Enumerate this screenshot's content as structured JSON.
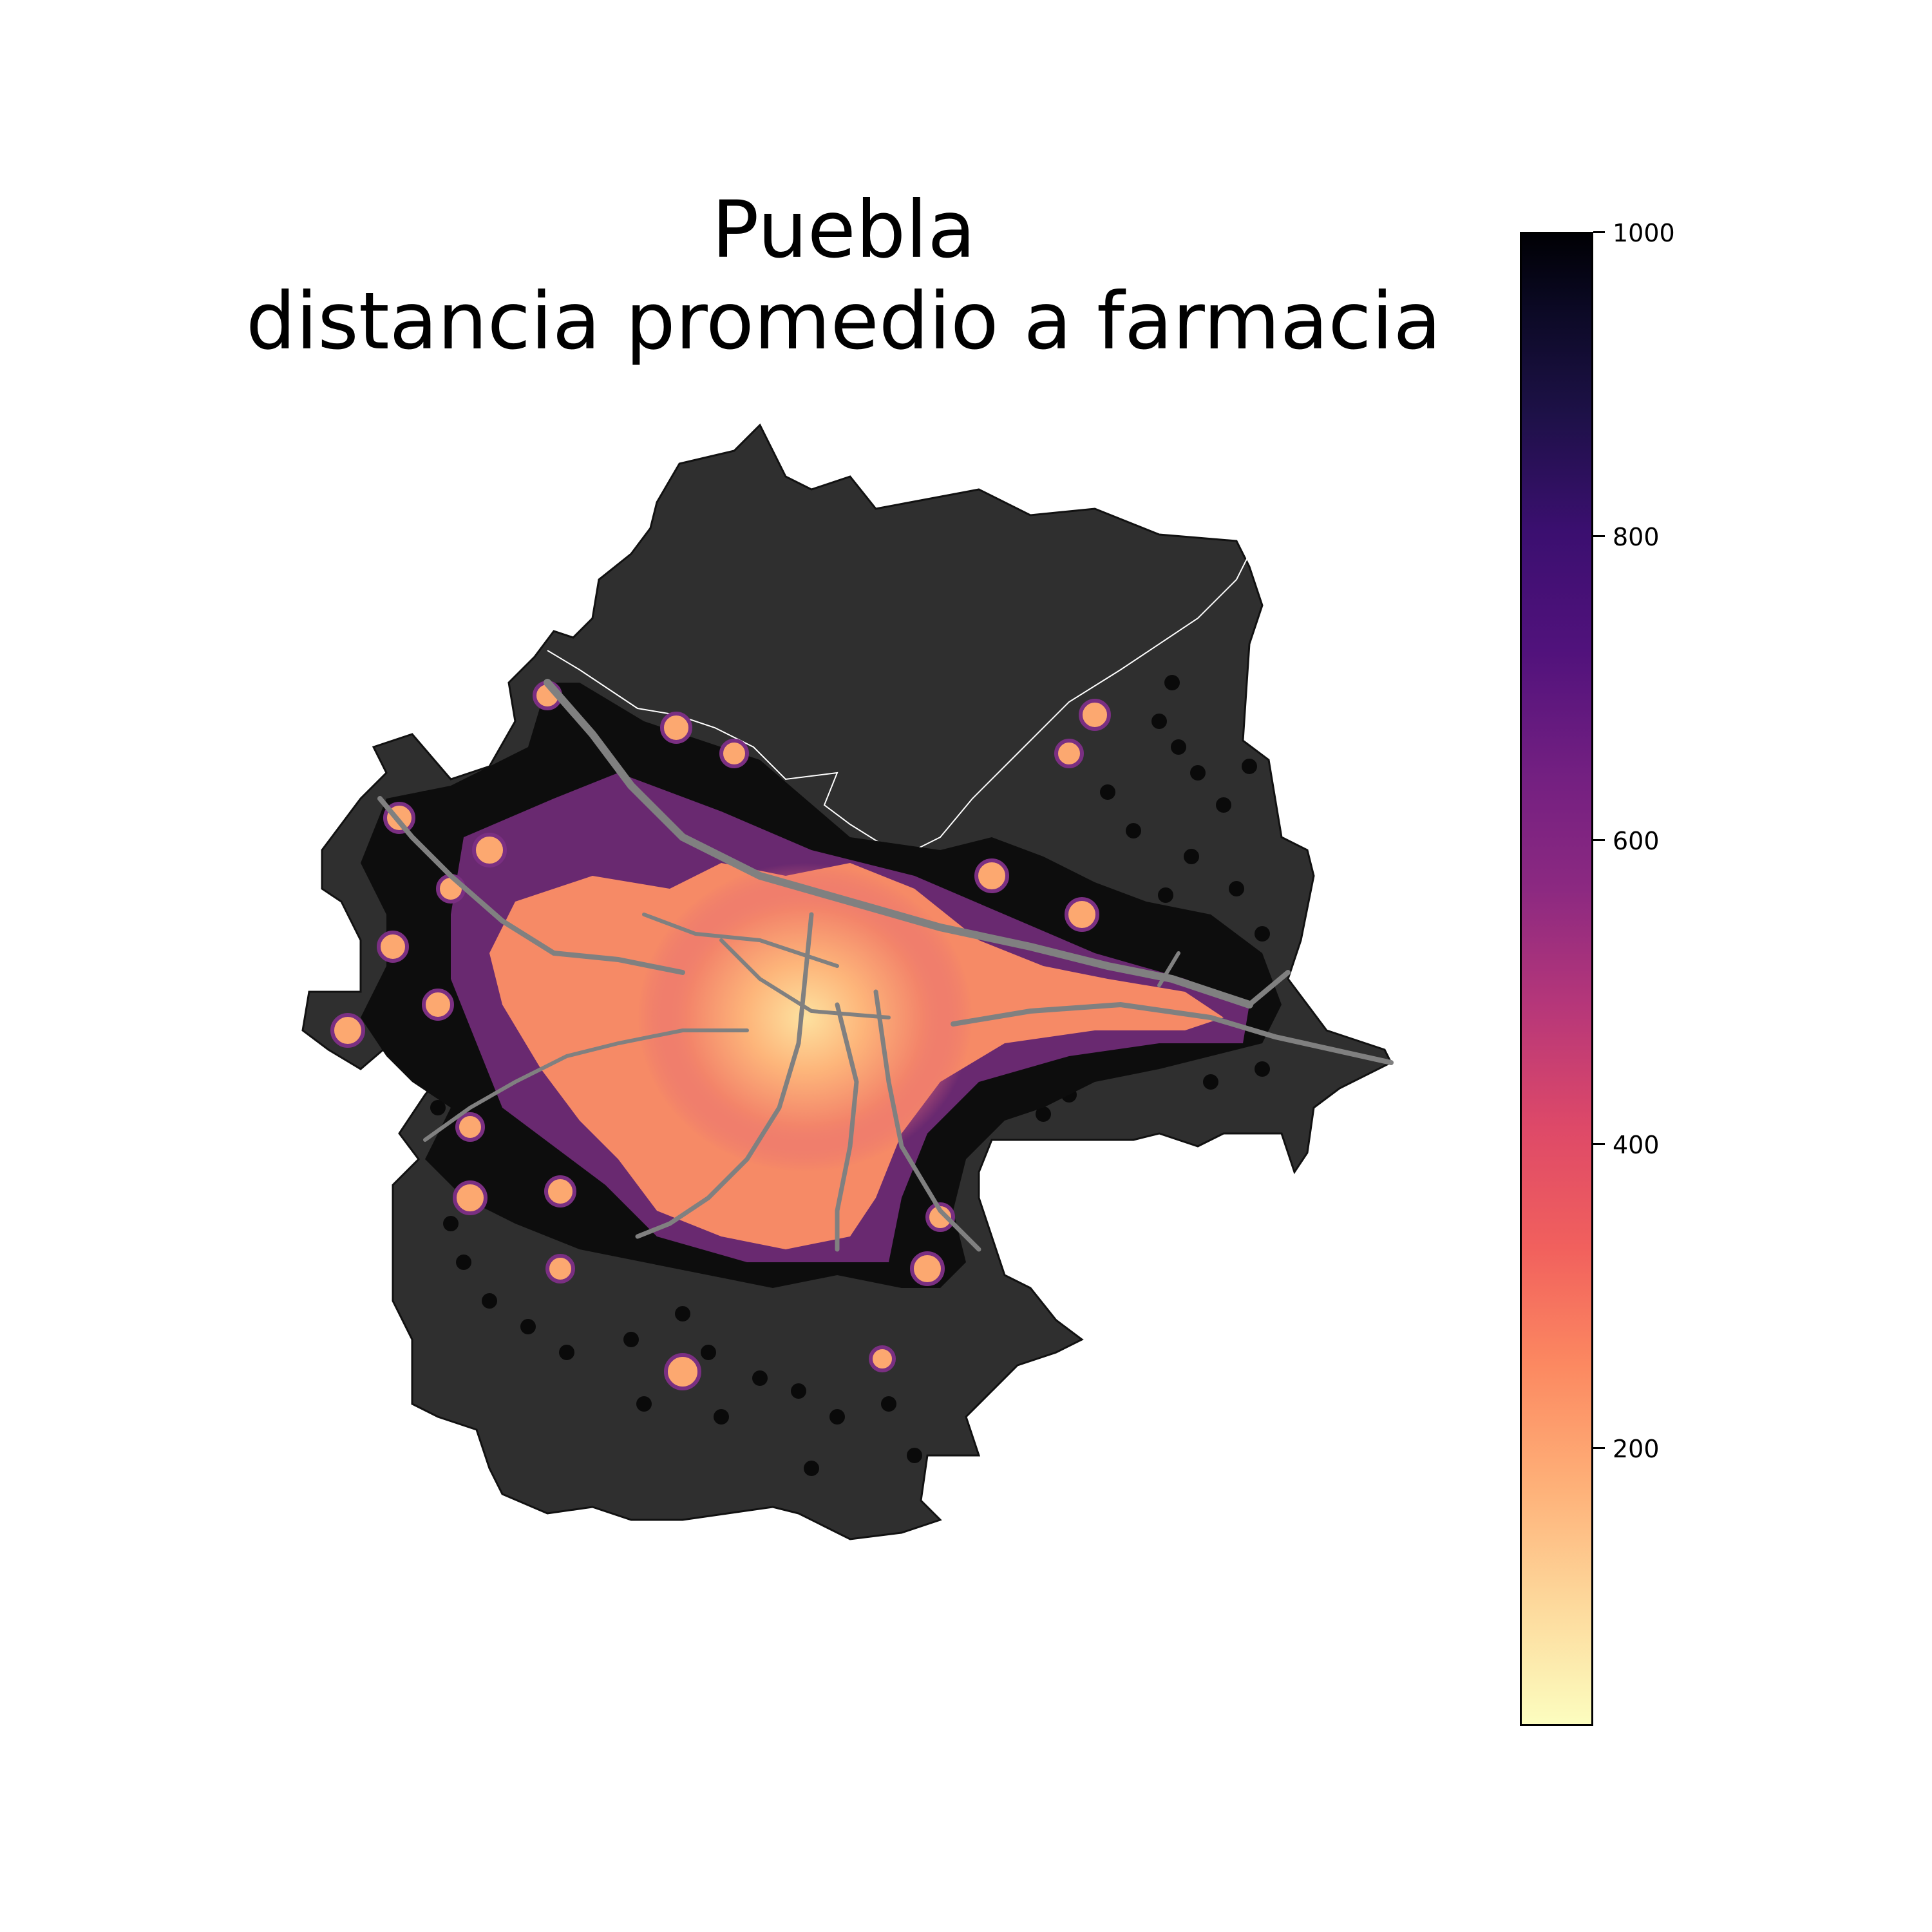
{
  "title": {
    "line1": "Puebla",
    "line2": "distancia promedio a farmacia"
  },
  "colorbar": {
    "colormap": "magma_r",
    "range": [
      0,
      1000
    ],
    "ticks": [
      {
        "value": 1000,
        "label": "1000"
      },
      {
        "value": 800,
        "label": "800"
      },
      {
        "value": 600,
        "label": "600"
      },
      {
        "value": 400,
        "label": "400"
      },
      {
        "value": 200,
        "label": "200"
      }
    ]
  },
  "map": {
    "background_color": "#2f2f2f",
    "no_data_color": "#2f2f2f",
    "road_color": "#808080",
    "boundary_color": "#ffffff",
    "urban_cells": "hexagonal grid (H3-style)"
  }
}
